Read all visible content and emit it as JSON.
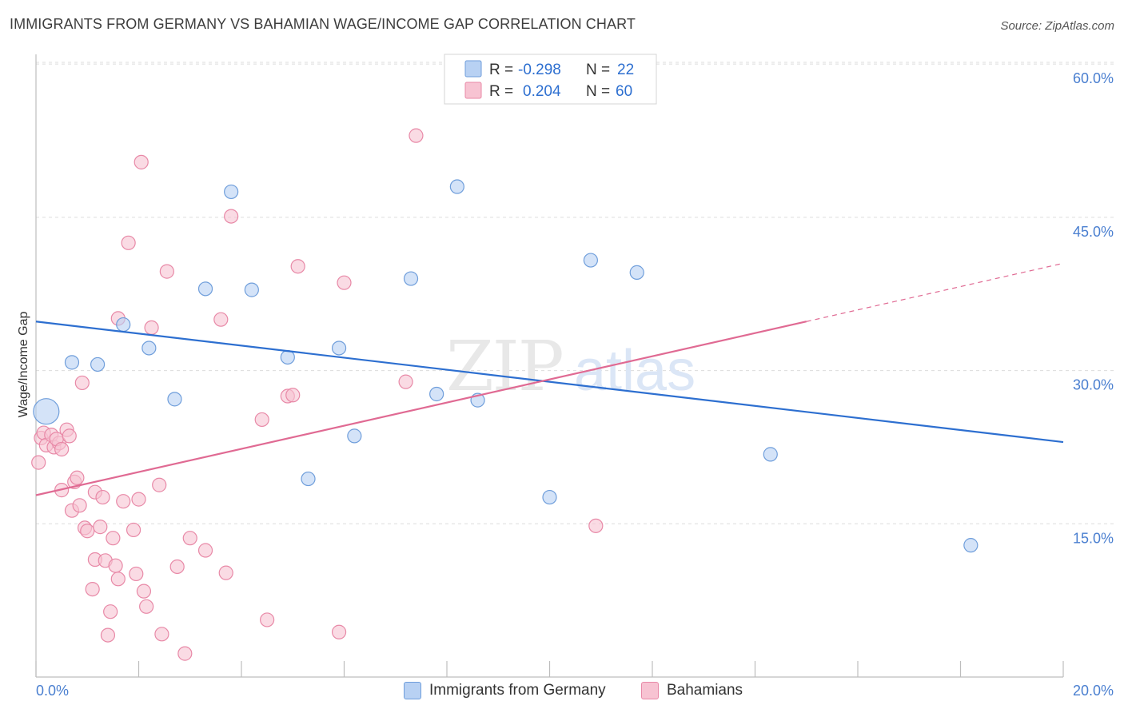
{
  "header": {
    "title": "IMMIGRANTS FROM GERMANY VS BAHAMIAN WAGE/INCOME GAP CORRELATION CHART",
    "source": "Source: ZipAtlas.com"
  },
  "watermark": {
    "zip": "ZIP",
    "atlas": "atlas"
  },
  "colors": {
    "blue_fill": "#b8d1f3",
    "blue_stroke": "#6f9edb",
    "blue_line": "#2d6fd0",
    "pink_fill": "#f7c3d2",
    "pink_stroke": "#e889a7",
    "pink_line": "#e06a93",
    "tick_text": "#4a7fd0",
    "grid": "#dcdcdc"
  },
  "chart_data": {
    "type": "scatter",
    "xlabel": "",
    "ylabel": "Wage/Income Gap",
    "xlim": [
      0,
      20
    ],
    "ylim": [
      0,
      61.5
    ],
    "x_tick_labels": [
      "0.0%",
      "20.0%"
    ],
    "y_ticks": [
      15,
      30,
      45,
      60
    ],
    "y_tick_labels": [
      "15.0%",
      "30.0%",
      "45.0%",
      "60.0%"
    ],
    "legend_top": [
      {
        "r_label": "R =",
        "r_value": "-0.298",
        "n_label": "N =",
        "n_value": "22"
      },
      {
        "r_label": "R =",
        "r_value": "0.204",
        "n_label": "N =",
        "n_value": "60"
      }
    ],
    "series": [
      {
        "name": "Immigrants from Germany",
        "trend": {
          "x0": 0,
          "y0": 34.8,
          "x1": 20,
          "y1": 23.0
        },
        "points": [
          {
            "x": 0.2,
            "y": 26.0,
            "large": true
          },
          {
            "x": 0.7,
            "y": 30.8
          },
          {
            "x": 1.2,
            "y": 30.6
          },
          {
            "x": 1.7,
            "y": 34.5
          },
          {
            "x": 2.2,
            "y": 32.2
          },
          {
            "x": 2.7,
            "y": 27.2
          },
          {
            "x": 3.3,
            "y": 38.0
          },
          {
            "x": 3.8,
            "y": 47.5
          },
          {
            "x": 4.2,
            "y": 37.9
          },
          {
            "x": 4.9,
            "y": 31.3
          },
          {
            "x": 5.3,
            "y": 19.4
          },
          {
            "x": 5.9,
            "y": 32.2
          },
          {
            "x": 6.2,
            "y": 23.6
          },
          {
            "x": 7.3,
            "y": 39.0
          },
          {
            "x": 7.8,
            "y": 27.7
          },
          {
            "x": 8.2,
            "y": 48.0
          },
          {
            "x": 8.6,
            "y": 27.1
          },
          {
            "x": 10.0,
            "y": 17.6
          },
          {
            "x": 10.8,
            "y": 40.8
          },
          {
            "x": 11.7,
            "y": 39.6
          },
          {
            "x": 14.3,
            "y": 21.8
          },
          {
            "x": 18.2,
            "y": 12.9
          }
        ]
      },
      {
        "name": "Bahamians",
        "trend": {
          "x0": 0,
          "y0": 17.8,
          "x1": 15.0,
          "y1": 34.8,
          "dash_x1": 20,
          "dash_y1": 40.5
        },
        "points": [
          {
            "x": 0.05,
            "y": 21.0
          },
          {
            "x": 0.1,
            "y": 23.4
          },
          {
            "x": 0.15,
            "y": 23.9
          },
          {
            "x": 0.2,
            "y": 22.7
          },
          {
            "x": 0.3,
            "y": 23.7
          },
          {
            "x": 0.35,
            "y": 22.5
          },
          {
            "x": 0.45,
            "y": 22.9
          },
          {
            "x": 0.4,
            "y": 23.3
          },
          {
            "x": 0.5,
            "y": 22.3
          },
          {
            "x": 0.6,
            "y": 24.2
          },
          {
            "x": 0.65,
            "y": 23.6
          },
          {
            "x": 0.5,
            "y": 18.3
          },
          {
            "x": 0.7,
            "y": 16.3
          },
          {
            "x": 0.75,
            "y": 19.1
          },
          {
            "x": 0.8,
            "y": 19.5
          },
          {
            "x": 0.85,
            "y": 16.8
          },
          {
            "x": 0.9,
            "y": 28.8
          },
          {
            "x": 0.95,
            "y": 14.6
          },
          {
            "x": 1.0,
            "y": 14.3
          },
          {
            "x": 1.1,
            "y": 8.6
          },
          {
            "x": 1.15,
            "y": 11.5
          },
          {
            "x": 1.15,
            "y": 18.1
          },
          {
            "x": 1.25,
            "y": 14.7
          },
          {
            "x": 1.3,
            "y": 17.6
          },
          {
            "x": 1.35,
            "y": 11.4
          },
          {
            "x": 1.4,
            "y": 4.1
          },
          {
            "x": 1.45,
            "y": 6.4
          },
          {
            "x": 1.5,
            "y": 13.6
          },
          {
            "x": 1.55,
            "y": 10.9
          },
          {
            "x": 1.6,
            "y": 35.1
          },
          {
            "x": 1.6,
            "y": 9.6
          },
          {
            "x": 1.7,
            "y": 17.2
          },
          {
            "x": 1.8,
            "y": 42.5
          },
          {
            "x": 1.9,
            "y": 14.4
          },
          {
            "x": 1.95,
            "y": 10.1
          },
          {
            "x": 2.0,
            "y": 17.4
          },
          {
            "x": 2.05,
            "y": 50.4
          },
          {
            "x": 2.1,
            "y": 8.4
          },
          {
            "x": 2.15,
            "y": 6.9
          },
          {
            "x": 2.25,
            "y": 34.2
          },
          {
            "x": 2.4,
            "y": 18.8
          },
          {
            "x": 2.45,
            "y": 4.2
          },
          {
            "x": 2.55,
            "y": 39.7
          },
          {
            "x": 2.75,
            "y": 10.8
          },
          {
            "x": 2.9,
            "y": 2.3
          },
          {
            "x": 3.0,
            "y": 13.6
          },
          {
            "x": 3.3,
            "y": 12.4
          },
          {
            "x": 3.6,
            "y": 35.0
          },
          {
            "x": 3.7,
            "y": 10.2
          },
          {
            "x": 3.8,
            "y": 45.1
          },
          {
            "x": 4.4,
            "y": 25.2
          },
          {
            "x": 4.5,
            "y": 5.6
          },
          {
            "x": 4.9,
            "y": 27.5
          },
          {
            "x": 5.0,
            "y": 27.6
          },
          {
            "x": 5.1,
            "y": 40.2
          },
          {
            "x": 5.9,
            "y": 4.4
          },
          {
            "x": 6.0,
            "y": 38.6
          },
          {
            "x": 7.2,
            "y": 28.9
          },
          {
            "x": 7.4,
            "y": 53.0
          },
          {
            "x": 10.9,
            "y": 14.8
          }
        ]
      }
    ]
  }
}
